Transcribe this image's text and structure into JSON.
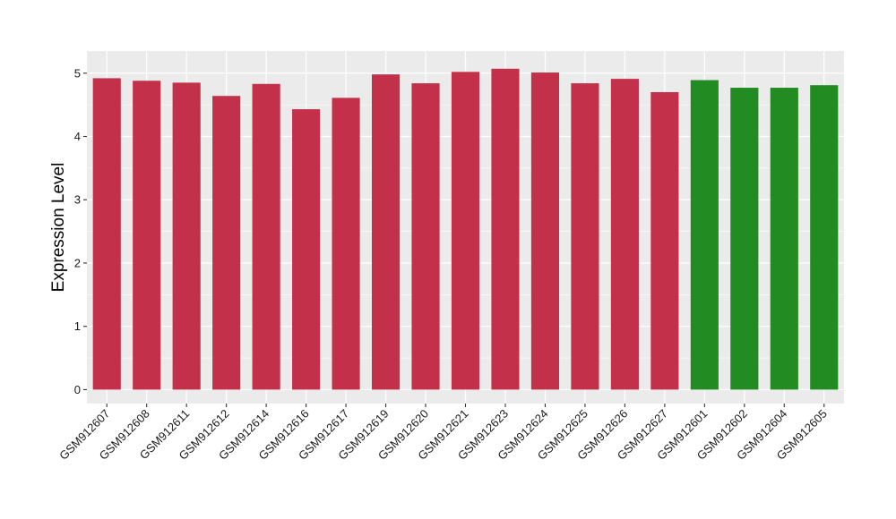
{
  "chart_data": {
    "type": "bar",
    "title": "",
    "xlabel": "",
    "ylabel": "Expression Level",
    "ylim": [
      -0.22,
      5.35
    ],
    "yticks": [
      0,
      1,
      2,
      3,
      4,
      5
    ],
    "grid": true,
    "legend": "none",
    "categories": [
      "GSM912607",
      "GSM912608",
      "GSM912611",
      "GSM912612",
      "GSM912614",
      "GSM912616",
      "GSM912617",
      "GSM912619",
      "GSM912620",
      "GSM912621",
      "GSM912623",
      "GSM912624",
      "GSM912625",
      "GSM912626",
      "GSM912627",
      "GSM912601",
      "GSM912602",
      "GSM912604",
      "GSM912605"
    ],
    "values": [
      4.92,
      4.88,
      4.85,
      4.64,
      4.83,
      4.43,
      4.61,
      4.98,
      4.84,
      5.02,
      5.07,
      5.01,
      4.84,
      4.91,
      4.7,
      4.89,
      4.77,
      4.77,
      4.81
    ],
    "bar_colors": [
      "#c3304a",
      "#c3304a",
      "#c3304a",
      "#c3304a",
      "#c3304a",
      "#c3304a",
      "#c3304a",
      "#c3304a",
      "#c3304a",
      "#c3304a",
      "#c3304a",
      "#c3304a",
      "#c3304a",
      "#c3304a",
      "#c3304a",
      "#228b22",
      "#228b22",
      "#228b22",
      "#228b22"
    ],
    "panel_color": "#ebebeb",
    "grid_color": "#ffffff"
  }
}
